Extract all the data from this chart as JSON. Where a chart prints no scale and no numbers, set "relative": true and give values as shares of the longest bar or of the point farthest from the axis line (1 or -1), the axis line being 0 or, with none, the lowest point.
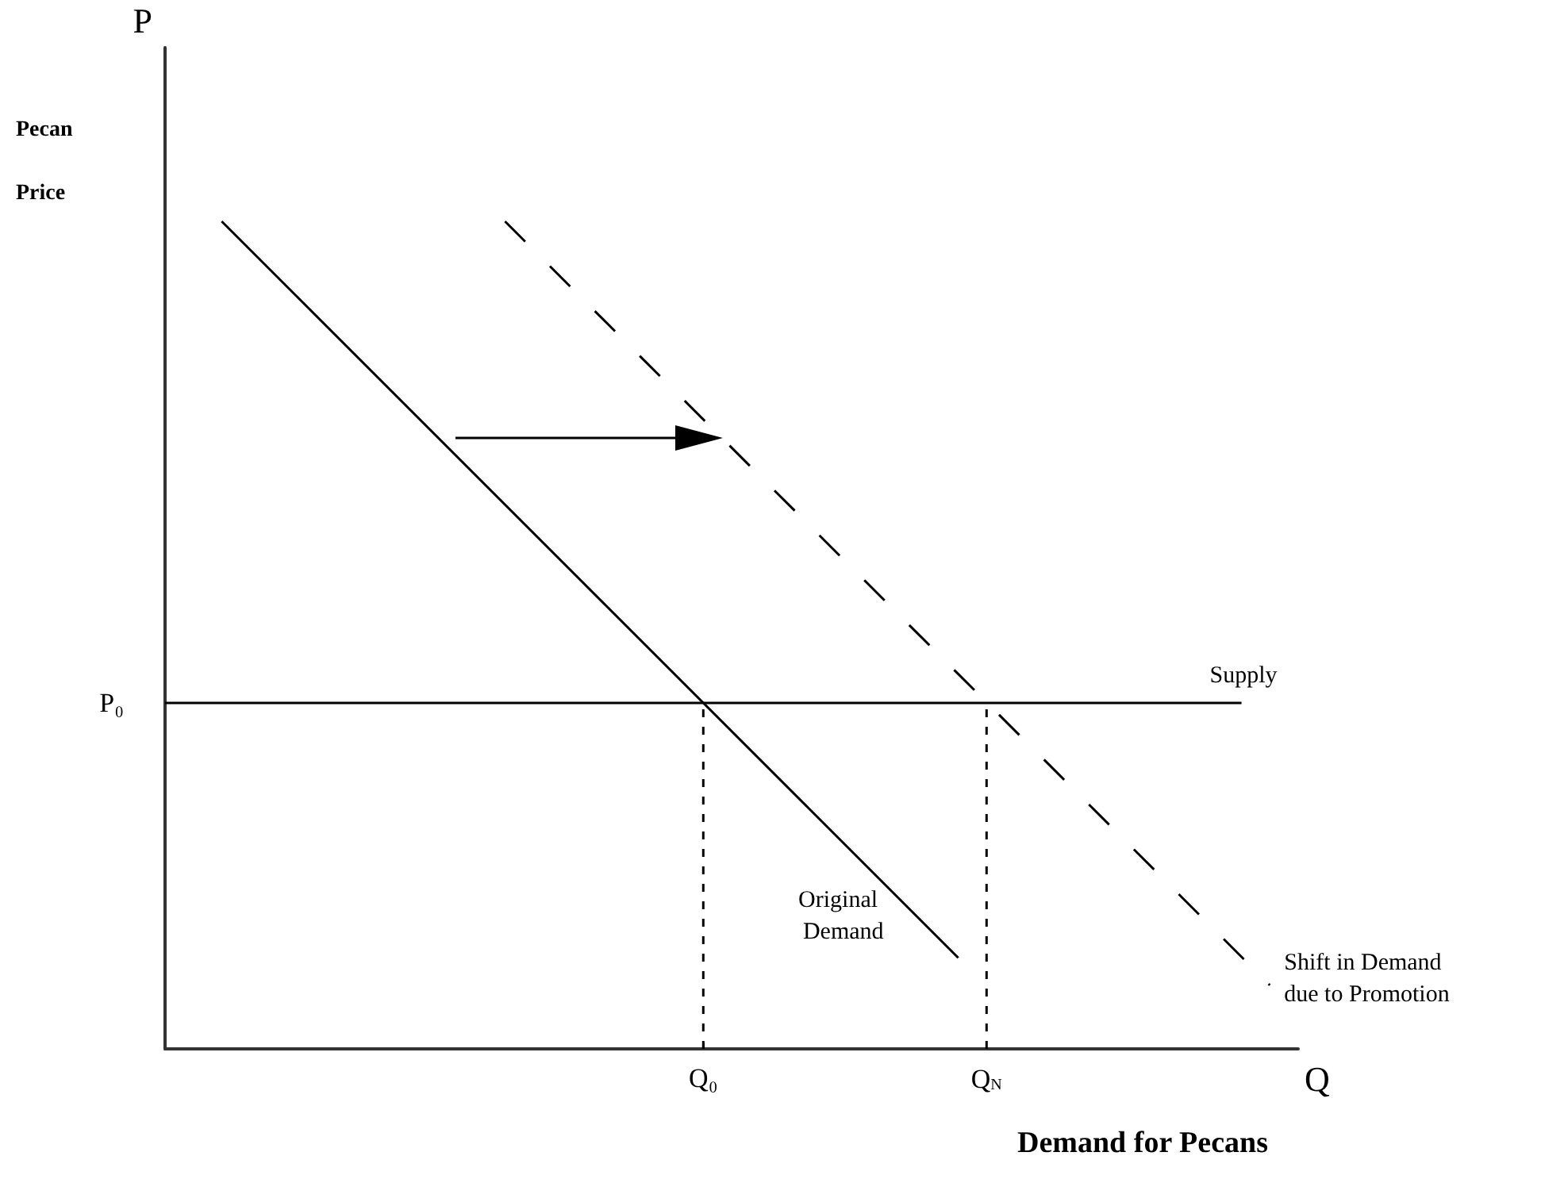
{
  "chart_data": {
    "type": "line",
    "relative": true,
    "title": "Demand for Pecans",
    "xlabel": "Q",
    "annotations": [
      "P",
      "Pecan Price",
      "P₀"
    ],
    "legend": false,
    "marker": "none",
    "categories": [
      null,
      null,
      null,
      null,
      null,
      null,
      null,
      null,
      null,
      null,
      null,
      null,
      null,
      null,
      null,
      null,
      null,
      null,
      null,
      "Q₀",
      null,
      null,
      null,
      null,
      null,
      null,
      null,
      null,
      null,
      "Q$_{N}$",
      null,
      null,
      null,
      null,
      null,
      null,
      null,
      null,
      null,
      null,
      null
    ],
    "series": [
      {
        "name": "Original Demand",
        "color": "#000000",
        "line_style": "solid",
        "values": [
          null,
          null,
          1,
          null,
          null,
          null,
          null,
          null,
          null,
          null,
          null,
          null,
          null,
          null,
          null,
          null,
          null,
          null,
          null,
          null,
          null,
          null,
          null,
          null,
          null,
          null,
          null,
          null,
          0.11,
          null,
          null,
          null,
          null,
          null,
          null,
          null,
          null,
          null,
          null,
          null,
          null
        ]
      },
      {
        "name": "Shift in Demand due to Promotion",
        "color": "#000000",
        "line_style": "dashed",
        "values": [
          null,
          null,
          null,
          null,
          null,
          null,
          null,
          null,
          null,
          null,
          null,
          null,
          1,
          null,
          null,
          null,
          null,
          null,
          null,
          null,
          null,
          null,
          null,
          null,
          null,
          null,
          null,
          null,
          null,
          null,
          null,
          null,
          null,
          null,
          null,
          null,
          null,
          null,
          null,
          0.077,
          null
        ]
      },
      {
        "name": "Supply",
        "color": "#000000",
        "line_style": "solid",
        "values": [
          0.418,
          null,
          null,
          null,
          null,
          null,
          null,
          null,
          null,
          null,
          null,
          null,
          null,
          null,
          null,
          null,
          null,
          null,
          null,
          null,
          null,
          null,
          null,
          null,
          null,
          null,
          null,
          null,
          null,
          null,
          null,
          null,
          null,
          null,
          null,
          null,
          null,
          null,
          0.418,
          null,
          null
        ]
      },
      {
        "color": "#000000",
        "line_style": "dotted",
        "x": [
          "Q₀",
          "Q₀"
        ],
        "values": [
          0,
          0.418
        ]
      },
      {
        "color": "#000000",
        "line_style": "dotted",
        "x": [
          "Q$_{N}$",
          "Q$_{N}$"
        ],
        "values": [
          0,
          0.418
        ]
      }
    ]
  }
}
